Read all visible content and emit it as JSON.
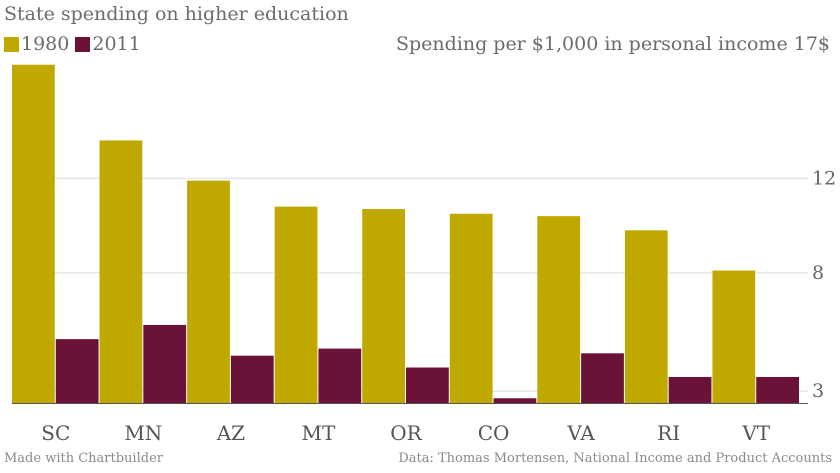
{
  "title": "State spending on higher education",
  "subtitle": "Spending per $1,000 in personal income 17$",
  "footer": {
    "credit": "Made with Chartbuilder",
    "source": "Data: Thomas Mortensen, National Income and Product Accounts"
  },
  "colors": {
    "s1980": "#bfa900",
    "s2011": "#6b1238",
    "grid": "#dddddd",
    "axis": "#555555"
  },
  "chart_data": {
    "type": "bar",
    "categories": [
      "SC",
      "MN",
      "AZ",
      "MT",
      "OR",
      "CO",
      "VA",
      "RI",
      "VT"
    ],
    "series": [
      {
        "name": "1980",
        "values": [
          16.8,
          13.6,
          11.9,
          10.8,
          10.7,
          10.5,
          10.4,
          9.8,
          8.1
        ]
      },
      {
        "name": "2011",
        "values": [
          5.2,
          5.8,
          4.5,
          4.8,
          4.0,
          2.7,
          4.6,
          3.6,
          3.6
        ]
      }
    ],
    "ylim": [
      2.5,
      17
    ],
    "yticks": [
      3,
      8,
      12
    ],
    "grid": true
  }
}
